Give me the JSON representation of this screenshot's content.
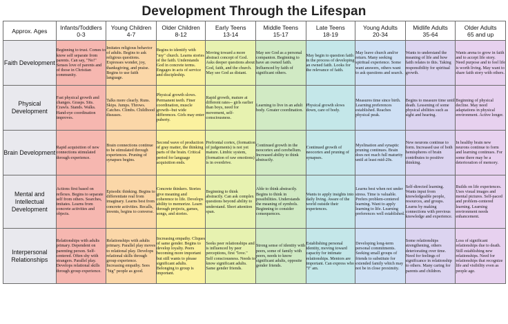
{
  "title": "Development Through the Lifespan",
  "corner_label": "Approx. Ages",
  "columns": [
    {
      "name": "Infants/Toddlers",
      "ages": "0-3"
    },
    {
      "name": "Young Children",
      "ages": "4-7"
    },
    {
      "name": "Older Children",
      "ages": "8-12"
    },
    {
      "name": "Early Teens",
      "ages": "13-14"
    },
    {
      "name": "Middle Teens",
      "ages": "15-17"
    },
    {
      "name": "Late Teens",
      "ages": "18-19"
    },
    {
      "name": "Young Adults",
      "ages": "20-34"
    },
    {
      "name": "Midlife Adults",
      "ages": "35-64"
    },
    {
      "name": "Older Adults",
      "ages": "65 and up"
    }
  ],
  "rows": [
    {
      "label": "Faith Development",
      "cells": [
        "Beginning to trust. Comes to know self separate from parents. Can say, \"No!\" Senses love of parents and of those in Christian community.",
        "Imitates religious behavior of adults. Begins to ask religious questions. Expresses wonder, joy, thanksgiving, and praise. Begins to use faith language.",
        "Begins to identify with \"my\" church. Learns stories of the faith. Understands God in concrete terms. Engages in acts of service and discipleship.",
        "Moving toward a more abstract concept of God. Asks deeper questions about God, faith, and the church. May see God as distant.",
        "May see God as a personal companion. Beginning to have an owned faith. Influenced by faith of significant others.",
        "May begin to question faith in the process of developing an owned faith. Looks for the relevance of faith.",
        "May leave church and/or return. Many seeking spiritual experience. Some want answers, others want to ask questions and search.",
        "Wants to understand the meaning of life and how faith relates to this. Taking responsibility for spiritual growth.",
        "Wants arena to grow in faith and to accept life story. Need purpose and to feel life is worth living. May want to share faith story with others."
      ]
    },
    {
      "label": "Physical Development",
      "cells": [
        "Fast physical growth and changes. Grasps. Sits. Crawls. Stands. Walks. Hand-eye coordination improves.",
        "Talks more clearly. Runs. Skips. Jumps. Throws. Catches. Climbs. Childhood diseases.",
        "Physical growth slows. Permanent teeth. Finer coordination, muscle growth--but wide differences. Girls may enter puberty.",
        "Rapid growth, mature at different rates-- girls earlier than boys, need for movement, self-consciousness.",
        "Learning to live in an adult body. Greater coordination.",
        "Physical growth slows down, care of body.",
        "Measures time since birth. Learning preferences established. Reaches physical peak.",
        "Begins to measure time until death. Lessening of some physical abilities such as sight and hearing.",
        "Beginning of physical decline. May need adaptations in physical environment. Active longer."
      ]
    },
    {
      "label": "Brain Development",
      "cells": [
        "Rapid acquisition of new connections stimulated through experience.",
        "Brain connections continue to be stimulated through experiences. Pruning of synapses begins.",
        "Second wave of production of gray matter, the thinking parts of the brain. Critical period for language acquisition ends.",
        "Prefrontal cortex, (formation of judgements) is not yet mature. Limbic system, (formation of raw emotions) is in overdrive.",
        "Continued growth in the neocortex and cerebellum. Increased ability to think abstractly.",
        "Continued growth of neocortex and pruning of synapses.",
        "Myelination and synaptic pruning continues. Brain does not reach full maturity until at least mid-20s.",
        "New neurons continue to form. Increased use of both hemispheres of brain contributes to positive thinking.",
        "In healthy brain new neurons continue to form and learning continues. For some there may be a deterioration of memory."
      ]
    },
    {
      "label": "Mental and Intellectual Development",
      "cells": [
        "Actions first based on reflexes. Begins to separate self from others. Searches, imitates. Learns from concrete activities and objects.",
        "Episodic thinking. Begins to differentiate real from imaginary. Learns best from concrete activities. Recalls, invents, begins to converse.",
        "Concrete thinkers. Stories give meaning and coherence to life. Develops ability to memorize. Learn through projects, games, songs, and stories.",
        "Beginning to think abstractly. Can ask complex questions beyond ability to understand. Short attention span.",
        "Able to think abstractly. Begins to think in possibilities. Understands the meaning of symbols. Beginning to consider consequences.",
        "Wants to apply insights into daily living. Aware of the world outside their experiences.",
        "Learns best when not under stress. Time is valuable. Prefers problem-centered learning. Want to apply learning to life. Learning preferences well established.",
        "Self-directed learning. Wants input from knowledgeable people, resources, and groups. Learns by making connections with previous knowledge and experience.",
        "Builds on life experiences. Uses visual images and mental pictures. Self-paced and problem-centered learning. Learning environment needs enhancement."
      ]
    },
    {
      "label": "Interpersonal Relationships",
      "cells": [
        "Relationships with adults primary. Dependent on parenting person. Self-centered. Often shy with strangers. Parallel play. Develops relational skills through group experience.",
        "Relationships with adults primary. Parallel play moves to relational play. Develops relational skills through group experience. Increasing empathy. Sees \"big\" people as good.",
        "Increasing empathy. Cliques of same gender. Begins to develop loyalty. Peers becoming more important but still wants to please significant adults. Belonging to group is important.",
        "Seeks peer relationships and is influenced by peer perceptions, first \"love.\" Self consciousness. Needs to know significant adults. Same gender friends.",
        "Strong sense of identity with peers, some of family with peers, needs to know significant adults, opposite gender friends.",
        "Establishing personal identity, moving toward capacity for intimate relationships. Mentors are important. Can express who \"I\" am.",
        "Developing long-term personal commitments. Seeking small groups of friends to substitute for extended family which may not be in close proximity.",
        "Some relationships strengthening, others deteriorating over time. Need for feelings of significance in relationship to others. Many caring for parents and children.",
        "Loss of significant relationships due to death. Still establishing new relationships. Need for relationships that recognize life and visibility even as people age."
      ]
    }
  ]
}
